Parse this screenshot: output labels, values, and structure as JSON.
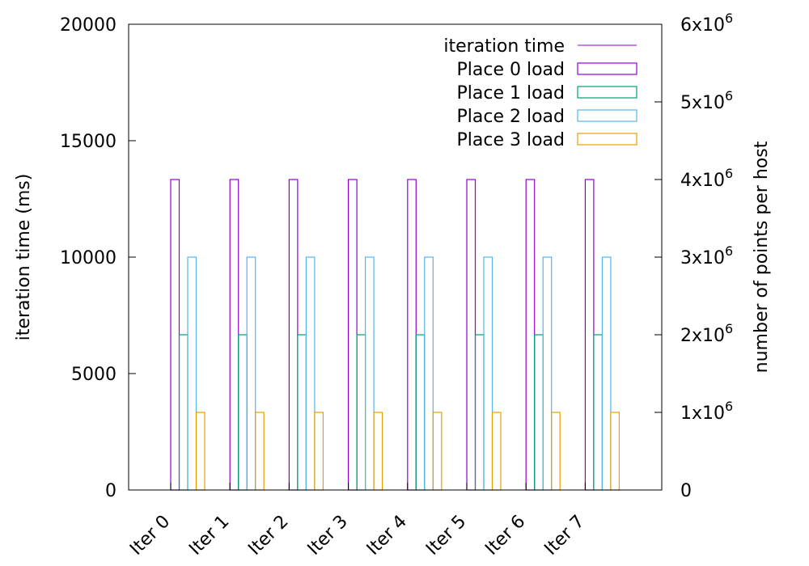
{
  "chart_data": {
    "type": "bar",
    "categories": [
      "Iter 0",
      "Iter 1",
      "Iter 2",
      "Iter 3",
      "Iter 4",
      "Iter 5",
      "Iter 6",
      "Iter 7"
    ],
    "series": [
      {
        "name": "iteration time",
        "axis": "left",
        "style": "line",
        "color": "#9400d3",
        "values": [
          null,
          null,
          null,
          null,
          null,
          null,
          null,
          null
        ]
      },
      {
        "name": "Place 0 load",
        "axis": "right",
        "style": "bar",
        "color": "#9400d3",
        "values": [
          4000000,
          4000000,
          4000000,
          4000000,
          4000000,
          4000000,
          4000000,
          4000000
        ]
      },
      {
        "name": "Place 1 load",
        "axis": "right",
        "style": "bar",
        "color": "#009e73",
        "values": [
          2000000,
          2000000,
          2000000,
          2000000,
          2000000,
          2000000,
          2000000,
          2000000
        ]
      },
      {
        "name": "Place 2 load",
        "axis": "right",
        "style": "bar",
        "color": "#56b4e9",
        "values": [
          3000000,
          3000000,
          3000000,
          3000000,
          3000000,
          3000000,
          3000000,
          3000000
        ]
      },
      {
        "name": "Place 3 load",
        "axis": "right",
        "style": "bar",
        "color": "#e69f00",
        "values": [
          1000000,
          1000000,
          1000000,
          1000000,
          1000000,
          1000000,
          1000000,
          1000000
        ]
      }
    ],
    "y_left": {
      "label": "iteration time (ms)",
      "range": [
        0,
        20000
      ],
      "ticks": [
        "0",
        "5000",
        "10000",
        "15000",
        "20000"
      ]
    },
    "y_right": {
      "label": "number of points per host",
      "range": [
        0,
        6000000
      ],
      "ticks": [
        {
          "base": "0",
          "exp": ""
        },
        {
          "base": "1x10",
          "exp": "6"
        },
        {
          "base": "2x10",
          "exp": "6"
        },
        {
          "base": "3x10",
          "exp": "6"
        },
        {
          "base": "4x10",
          "exp": "6"
        },
        {
          "base": "5x10",
          "exp": "6"
        },
        {
          "base": "6x10",
          "exp": "6"
        }
      ]
    },
    "legend_position": "top-right",
    "grid": false
  }
}
